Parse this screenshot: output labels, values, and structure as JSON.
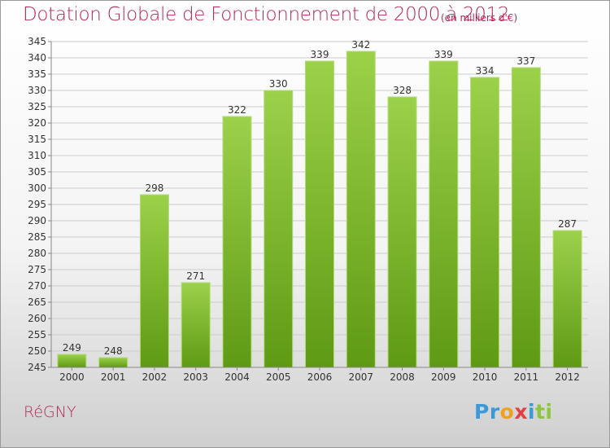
{
  "header": {
    "title": "Dotation Globale de Fonctionnement de 2000 à 2012",
    "unit": "(en milliers d'€)"
  },
  "footer": {
    "commune": "RéGNY",
    "logo_letters": [
      "P",
      "r",
      "o",
      "x",
      "i",
      "ti"
    ]
  },
  "colors": {
    "title": "#b8285a",
    "bar_light": "#9cd14a",
    "bar_dark": "#5f9a14",
    "grid": "#cccccc"
  },
  "chart_data": {
    "type": "bar",
    "title": "Dotation Globale de Fonctionnement de 2000 à 2012",
    "xlabel": "",
    "ylabel": "",
    "categories": [
      "2000",
      "2001",
      "2002",
      "2003",
      "2004",
      "2005",
      "2006",
      "2007",
      "2008",
      "2009",
      "2010",
      "2011",
      "2012"
    ],
    "values": [
      249,
      248,
      298,
      271,
      322,
      330,
      339,
      342,
      328,
      339,
      334,
      337,
      287
    ],
    "ylim": [
      245,
      345
    ],
    "yticks": [
      245,
      250,
      255,
      260,
      265,
      270,
      275,
      280,
      285,
      290,
      295,
      300,
      305,
      310,
      315,
      320,
      325,
      330,
      335,
      340,
      345
    ],
    "grid": true,
    "data_labels": true
  }
}
